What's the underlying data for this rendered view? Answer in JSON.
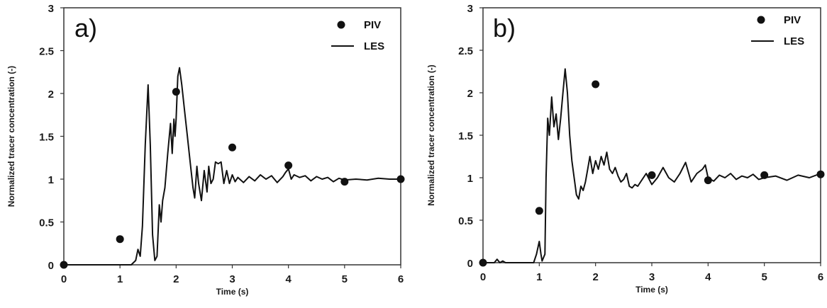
{
  "chart_data": [
    {
      "type": "line",
      "panel_label": "a)",
      "xlabel": "Time (s)",
      "ylabel": "Normalized tracer concentration (-)",
      "xlim": [
        0,
        6
      ],
      "ylim": [
        0,
        3
      ],
      "x_ticks": [
        "0",
        "1",
        "2",
        "3",
        "4",
        "5",
        "6"
      ],
      "y_ticks": [
        "0",
        "0.5",
        "1",
        "1.5",
        "2",
        "2.5",
        "3"
      ],
      "legend_position": "top-right",
      "series": [
        {
          "name": "PIV",
          "style": "markers",
          "x": [
            0,
            1,
            2,
            3,
            4,
            5,
            6
          ],
          "y": [
            0,
            0.3,
            2.02,
            1.37,
            1.16,
            0.97,
            1.0
          ]
        },
        {
          "name": "LES",
          "style": "line",
          "x": [
            0,
            1.0,
            1.2,
            1.28,
            1.32,
            1.36,
            1.4,
            1.45,
            1.5,
            1.54,
            1.58,
            1.62,
            1.66,
            1.7,
            1.73,
            1.76,
            1.8,
            1.85,
            1.9,
            1.93,
            1.96,
            1.98,
            2.0,
            2.03,
            2.06,
            2.08,
            2.1,
            2.15,
            2.2,
            2.25,
            2.3,
            2.33,
            2.37,
            2.4,
            2.45,
            2.5,
            2.55,
            2.58,
            2.62,
            2.66,
            2.7,
            2.75,
            2.8,
            2.85,
            2.9,
            2.95,
            3.0,
            3.05,
            3.1,
            3.2,
            3.3,
            3.4,
            3.5,
            3.6,
            3.7,
            3.8,
            3.9,
            3.95,
            4.0,
            4.05,
            4.1,
            4.2,
            4.3,
            4.4,
            4.5,
            4.6,
            4.7,
            4.8,
            4.9,
            5.0,
            5.2,
            5.4,
            5.6,
            5.8,
            6.0
          ],
          "y": [
            0,
            0,
            0,
            0.05,
            0.18,
            0.1,
            0.45,
            1.4,
            2.1,
            1.4,
            0.35,
            0.05,
            0.1,
            0.7,
            0.5,
            0.75,
            0.9,
            1.3,
            1.65,
            1.3,
            1.7,
            1.5,
            1.7,
            2.2,
            2.3,
            2.2,
            2.1,
            1.8,
            1.5,
            1.2,
            0.9,
            0.78,
            1.15,
            0.95,
            0.75,
            1.1,
            0.85,
            1.15,
            0.95,
            1.0,
            1.2,
            1.18,
            1.2,
            0.95,
            1.1,
            0.95,
            1.05,
            0.97,
            1.02,
            0.96,
            1.03,
            0.98,
            1.05,
            1.0,
            1.04,
            0.96,
            1.03,
            1.08,
            1.12,
            1.0,
            1.05,
            1.02,
            1.04,
            0.98,
            1.03,
            1.0,
            1.02,
            0.97,
            1.01,
            0.99,
            1.0,
            0.99,
            1.01,
            1.0,
            1.0
          ]
        }
      ]
    },
    {
      "type": "line",
      "panel_label": "b)",
      "xlabel": "Time (s)",
      "ylabel": "Normalized tracer concentration (-)",
      "xlim": [
        0,
        6
      ],
      "ylim": [
        0,
        3
      ],
      "x_ticks": [
        "0",
        "1",
        "2",
        "3",
        "4",
        "5",
        "6"
      ],
      "y_ticks": [
        "0",
        "0.5",
        "1",
        "1.5",
        "2",
        "2.5",
        "3"
      ],
      "legend_position": "top-right",
      "series": [
        {
          "name": "PIV",
          "style": "markers",
          "x": [
            0,
            1,
            2,
            3,
            4,
            5,
            6
          ],
          "y": [
            0,
            0.61,
            2.1,
            1.03,
            0.97,
            1.03,
            1.04
          ]
        },
        {
          "name": "LES",
          "style": "line",
          "x": [
            0,
            0.2,
            0.25,
            0.3,
            0.35,
            0.4,
            0.9,
            0.95,
            1.0,
            1.03,
            1.05,
            1.1,
            1.12,
            1.15,
            1.18,
            1.22,
            1.26,
            1.3,
            1.34,
            1.38,
            1.42,
            1.46,
            1.5,
            1.54,
            1.58,
            1.62,
            1.66,
            1.7,
            1.74,
            1.78,
            1.82,
            1.86,
            1.9,
            1.95,
            2.0,
            2.05,
            2.1,
            2.15,
            2.2,
            2.25,
            2.3,
            2.35,
            2.4,
            2.45,
            2.5,
            2.55,
            2.6,
            2.65,
            2.7,
            2.75,
            2.8,
            2.9,
            3.0,
            3.1,
            3.2,
            3.3,
            3.4,
            3.5,
            3.6,
            3.7,
            3.8,
            3.9,
            3.95,
            4.0,
            4.1,
            4.2,
            4.3,
            4.4,
            4.5,
            4.6,
            4.7,
            4.8,
            4.9,
            5.0,
            5.2,
            5.4,
            5.6,
            5.8,
            6.0
          ],
          "y": [
            0,
            0,
            0.04,
            0,
            0.02,
            0,
            0,
            0.1,
            0.25,
            0.1,
            0.02,
            0.1,
            1.0,
            1.7,
            1.5,
            1.95,
            1.6,
            1.75,
            1.45,
            1.7,
            2.0,
            2.28,
            2.0,
            1.5,
            1.2,
            1.0,
            0.8,
            0.75,
            0.9,
            0.85,
            0.95,
            1.1,
            1.25,
            1.05,
            1.2,
            1.1,
            1.25,
            1.15,
            1.3,
            1.1,
            1.05,
            1.12,
            1.02,
            0.95,
            0.98,
            1.05,
            0.9,
            0.88,
            0.92,
            0.9,
            0.95,
            1.05,
            0.92,
            1.0,
            1.12,
            1.0,
            0.95,
            1.05,
            1.18,
            0.95,
            1.05,
            1.1,
            1.15,
            1.0,
            0.96,
            1.03,
            1.0,
            1.05,
            0.98,
            1.02,
            1.0,
            1.04,
            0.98,
            1.0,
            1.02,
            0.97,
            1.03,
            1.0,
            1.05
          ]
        }
      ]
    }
  ]
}
